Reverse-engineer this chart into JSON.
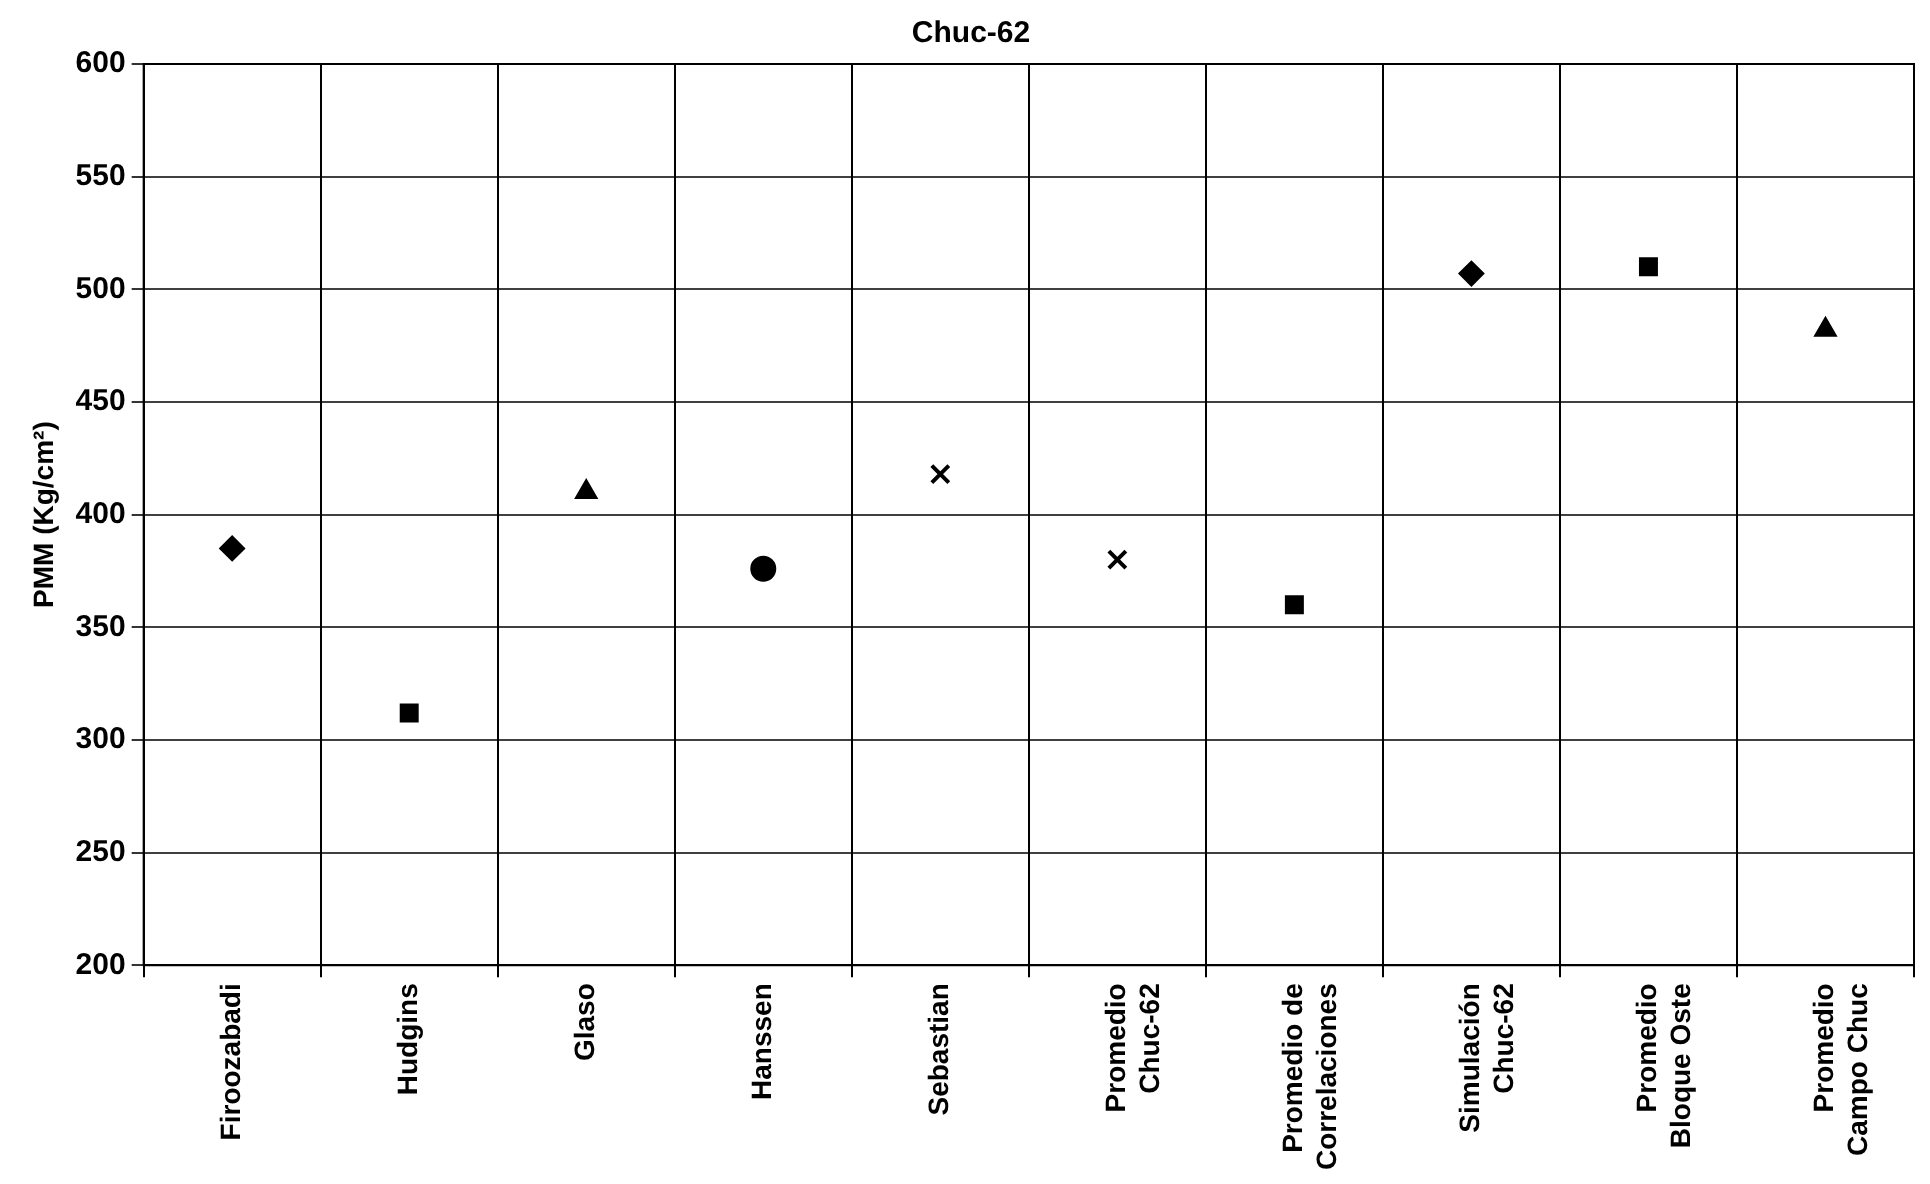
{
  "chart_data": {
    "type": "scatter",
    "title": "Chuc-62",
    "ylabel": "PMM (Kg/cm²)",
    "categories": [
      "Firoozabadi",
      "Hudgins",
      "Glaso",
      "Hanssen",
      "Sebastian",
      "Promedio Chuc-62",
      "Promedio de Correlaciones",
      "Simulación Chuc-62",
      "Promedio Bloque Oste",
      "Promedio Campo Chuc"
    ],
    "series": [
      {
        "color": "#000000",
        "marker": "diamond",
        "values": [
          385,
          null,
          null,
          null,
          null,
          null,
          null,
          null,
          null,
          null
        ]
      },
      {
        "color": "#000000",
        "marker": "square",
        "values": [
          null,
          312,
          null,
          null,
          null,
          null,
          null,
          null,
          null,
          null
        ]
      },
      {
        "color": "#000000",
        "marker": "triangle",
        "values": [
          null,
          null,
          410,
          null,
          null,
          null,
          null,
          null,
          null,
          null
        ]
      },
      {
        "color": "#000000",
        "marker": "circle",
        "values": [
          null,
          null,
          null,
          376,
          null,
          null,
          null,
          null,
          null,
          null
        ]
      },
      {
        "color": "#000000",
        "marker": "cross",
        "values": [
          null,
          null,
          null,
          null,
          418,
          null,
          null,
          null,
          null,
          null
        ]
      },
      {
        "color": "#000000",
        "marker": "cross",
        "values": [
          null,
          null,
          null,
          null,
          null,
          380,
          null,
          null,
          null,
          null
        ]
      },
      {
        "color": "#000000",
        "marker": "square",
        "values": [
          null,
          null,
          null,
          null,
          null,
          null,
          360,
          null,
          null,
          null
        ]
      },
      {
        "color": "#000000",
        "marker": "diamond",
        "values": [
          null,
          null,
          null,
          null,
          null,
          null,
          null,
          507,
          null,
          null
        ]
      },
      {
        "color": "#000000",
        "marker": "square",
        "values": [
          null,
          null,
          null,
          null,
          null,
          null,
          null,
          null,
          510,
          null
        ]
      },
      {
        "color": "#000000",
        "marker": "triangle",
        "values": [
          null,
          null,
          null,
          null,
          null,
          null,
          null,
          null,
          null,
          482
        ]
      }
    ],
    "ylim": [
      200,
      600
    ],
    "yticks": [
      200,
      250,
      300,
      350,
      400,
      450,
      500,
      550,
      600
    ],
    "grid": true
  }
}
